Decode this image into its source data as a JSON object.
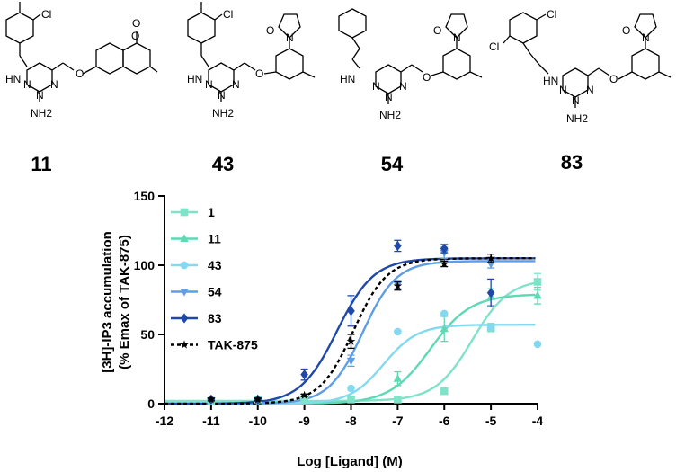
{
  "compounds": [
    {
      "id": "11",
      "label": "11",
      "scaffold": "aminotriazine-methoxy-coumarin",
      "atom_labels": {
        "cl": "Cl",
        "hn": "HN",
        "n1": "N",
        "n2": "N",
        "n3": "N",
        "nh2": "NH2",
        "o_ether": "O",
        "o_ring": "O",
        "o_carbonyl": "O"
      }
    },
    {
      "id": "43",
      "label": "43",
      "scaffold": "aminotriazine-methoxy-phenylpyrrolidinone",
      "atom_labels": {
        "cl": "Cl",
        "hn": "HN",
        "n1": "N",
        "n2": "N",
        "n3": "N",
        "nh2": "NH2",
        "o_ether": "O",
        "n_lactam": "N",
        "o_carbonyl": "O"
      }
    },
    {
      "id": "54",
      "label": "54",
      "scaffold": "aminotriazine-methoxy-phenylpyrrolidinone",
      "atom_labels": {
        "hn": "HN",
        "n1": "N",
        "n2": "N",
        "n3": "N",
        "nh2": "NH2",
        "o_ether": "O",
        "n_lactam": "N",
        "o_carbonyl": "O"
      }
    },
    {
      "id": "83",
      "label": "83",
      "scaffold": "aminotriazine-methoxy-phenylpyrrolidinone",
      "atom_labels": {
        "cl_top": "Cl",
        "cl_left": "Cl",
        "hn": "HN",
        "n1": "N",
        "n2": "N",
        "n3": "N",
        "nh2": "NH2",
        "o_ether": "O",
        "n_lactam": "N",
        "o_carbonyl": "O"
      }
    }
  ],
  "chart_data": {
    "type": "scatter",
    "title": "",
    "xlabel": "Log [Ligand] (M)",
    "ylabel_line1": "[3H]-IP3 accumulation",
    "ylabel_line2": "(% Emax of TAK-875)",
    "xlim": [
      -12,
      -4
    ],
    "ylim": [
      0,
      150
    ],
    "xticks": [
      -12,
      -11,
      -10,
      -9,
      -8,
      -7,
      -6,
      -5,
      -4
    ],
    "yticks": [
      0,
      50,
      100,
      150
    ],
    "legend_position": "top-left",
    "series": [
      {
        "name": "1",
        "color": "#7FE3C9",
        "marker": "square",
        "line": "solid",
        "x": [
          -11,
          -10,
          -9,
          -8,
          -7,
          -6,
          -5,
          -4
        ],
        "y": [
          2,
          3,
          3,
          3,
          3,
          9,
          55,
          88
        ],
        "err": [
          1,
          1,
          1,
          1,
          1,
          2,
          3,
          6
        ],
        "fit": {
          "bottom": 2,
          "top": 90,
          "logec50": -5.4,
          "hill": 1.1
        }
      },
      {
        "name": "11",
        "color": "#5ED9B4",
        "marker": "triangle-up",
        "line": "solid",
        "x": [
          -7,
          -6,
          -5,
          -4
        ],
        "y": [
          18,
          54,
          77,
          78
        ],
        "err": [
          5,
          9,
          6,
          6
        ],
        "fit": {
          "bottom": 0,
          "top": 79,
          "logec50": -6.3,
          "hill": 1.0
        }
      },
      {
        "name": "43",
        "color": "#84D9F0",
        "marker": "circle",
        "line": "solid",
        "x": [
          -8,
          -7,
          -6,
          -5,
          -4
        ],
        "y": [
          11,
          52,
          65,
          55,
          43
        ],
        "err": [
          0,
          0,
          0,
          0,
          0
        ],
        "fit": {
          "bottom": 0,
          "top": 57,
          "logec50": -7.3,
          "hill": 1.2
        }
      },
      {
        "name": "54",
        "color": "#5E9EE6",
        "marker": "triangle-down",
        "line": "solid",
        "x": [
          -8,
          -7,
          -6,
          -5
        ],
        "y": [
          31,
          86,
          109,
          101
        ],
        "err": [
          4,
          3,
          4,
          3
        ],
        "fit": {
          "bottom": 0,
          "top": 103,
          "logec50": -7.75,
          "hill": 1.2
        }
      },
      {
        "name": "83",
        "color": "#1F48A8",
        "marker": "diamond",
        "line": "solid",
        "x": [
          -11,
          -10,
          -9,
          -8,
          -7,
          -6,
          -5
        ],
        "y": [
          3,
          3,
          21,
          67,
          114,
          112,
          80
        ],
        "err": [
          1,
          1,
          4,
          11,
          4,
          3,
          10
        ],
        "fit": {
          "bottom": 0,
          "top": 105,
          "logec50": -8.3,
          "hill": 1.1
        }
      },
      {
        "name": "TAK-875",
        "color": "#000000",
        "marker": "star",
        "line": "dashed",
        "x": [
          -11,
          -10,
          -9,
          -8,
          -7,
          -6,
          -5
        ],
        "y": [
          3,
          3,
          6,
          45,
          85,
          101,
          105
        ],
        "err": [
          1,
          1,
          1,
          5,
          3,
          2,
          3
        ],
        "fit": {
          "bottom": 0,
          "top": 105,
          "logec50": -7.95,
          "hill": 1.2
        }
      }
    ]
  }
}
